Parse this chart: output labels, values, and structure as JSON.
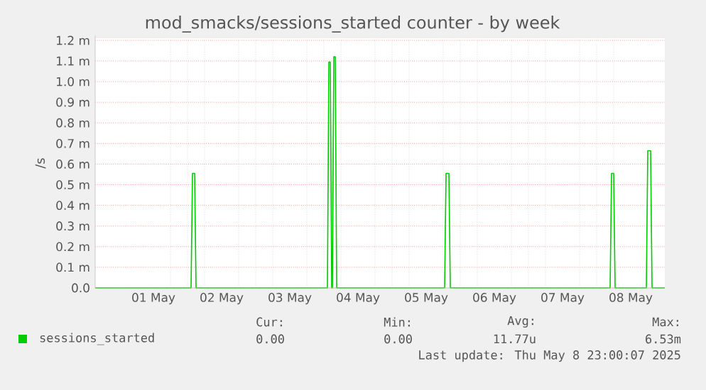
{
  "chart_data": {
    "type": "line",
    "title": "mod_smacks/sessions_started counter - by week",
    "ylabel": "/s",
    "xlim": [
      "2025-04-30T15:30",
      "2025-05-09T00:00"
    ],
    "ylim": [
      0,
      1.21
    ],
    "xticks": [
      {
        "value": "2025-05-01T12:00",
        "label": "01 May"
      },
      {
        "value": "2025-05-02T12:00",
        "label": "02 May"
      },
      {
        "value": "2025-05-03T12:00",
        "label": "03 May"
      },
      {
        "value": "2025-05-04T12:00",
        "label": "04 May"
      },
      {
        "value": "2025-05-05T12:00",
        "label": "05 May"
      },
      {
        "value": "2025-05-06T12:00",
        "label": "06 May"
      },
      {
        "value": "2025-05-07T12:00",
        "label": "07 May"
      },
      {
        "value": "2025-05-08T12:00",
        "label": "08 May"
      }
    ],
    "yticks": [
      {
        "value": 0,
        "label": "0.0"
      },
      {
        "value": 0.1,
        "label": "0.1 m"
      },
      {
        "value": 0.2,
        "label": "0.2 m"
      },
      {
        "value": 0.3,
        "label": "0.3 m"
      },
      {
        "value": 0.4,
        "label": "0.4 m"
      },
      {
        "value": 0.5,
        "label": "0.5 m"
      },
      {
        "value": 0.6,
        "label": "0.6 m"
      },
      {
        "value": 0.7,
        "label": "0.7 m"
      },
      {
        "value": 0.8,
        "label": "0.8 m"
      },
      {
        "value": 0.9,
        "label": "0.9 m"
      },
      {
        "value": 1.0,
        "label": "1.0 m"
      },
      {
        "value": 1.1,
        "label": "1.1 m"
      },
      {
        "value": 1.2,
        "label": "1.2 m"
      }
    ],
    "grid": true,
    "legend": "bottom",
    "series": [
      {
        "name": "sessions_started",
        "color": "#00cc00",
        "x": [
          "2025-04-30T15:30",
          "2025-05-02T01:15",
          "2025-05-02T01:45",
          "2025-05-02T02:30",
          "2025-05-02T03:00",
          "2025-05-04T01:15",
          "2025-05-04T01:45",
          "2025-05-04T02:15",
          "2025-05-04T02:45",
          "2025-05-04T03:00",
          "2025-05-04T03:30",
          "2025-05-04T04:00",
          "2025-05-04T04:30",
          "2025-05-05T18:30",
          "2025-05-05T19:00",
          "2025-05-05T20:00",
          "2025-05-05T20:30",
          "2025-05-08T04:45",
          "2025-05-08T05:15",
          "2025-05-08T06:00",
          "2025-05-08T06:30",
          "2025-05-08T17:30",
          "2025-05-08T18:00",
          "2025-05-08T19:00",
          "2025-05-08T19:30",
          "2025-05-09T00:00"
        ],
        "values": [
          0,
          0,
          0.555,
          0.555,
          0,
          0,
          1.095,
          1.095,
          0,
          0,
          1.12,
          1.12,
          0,
          0,
          0.555,
          0.555,
          0,
          0,
          0.555,
          0.555,
          0,
          0,
          0.665,
          0.665,
          0,
          0
        ]
      }
    ],
    "annotations": [
      "Cur:",
      "Min:",
      "Avg:",
      "Max:",
      "0.00",
      "0.00",
      "11.77u",
      "6.53m",
      "Last update: Thu May  8 23:00:07 2025"
    ]
  }
}
